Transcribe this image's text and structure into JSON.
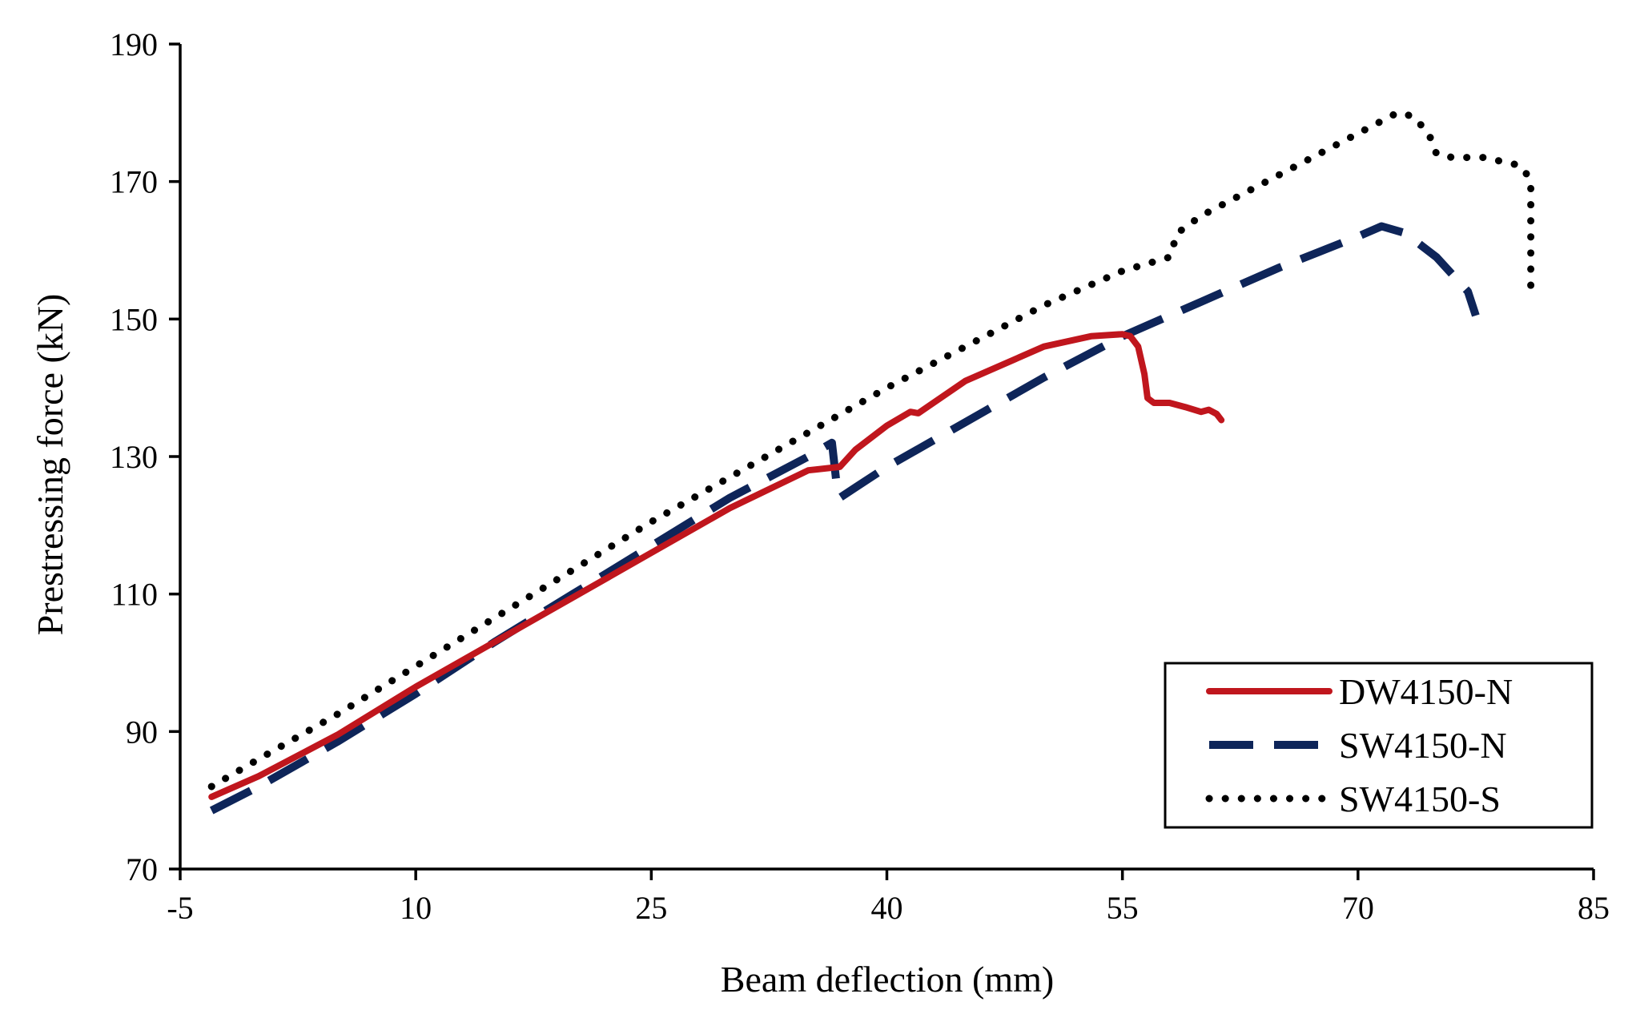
{
  "chart_data": {
    "type": "line",
    "title": "",
    "xlabel": "Beam deflection (mm)",
    "ylabel": "Prestressing force (kN)",
    "xlim": [
      -5,
      85
    ],
    "ylim": [
      70,
      190
    ],
    "x_ticks": [
      -5,
      10,
      25,
      40,
      55,
      70,
      85
    ],
    "y_ticks": [
      70,
      90,
      110,
      130,
      150,
      170,
      190
    ],
    "x_tick_labels": [
      "-5",
      "10",
      "25",
      "40",
      "55",
      "70",
      "85"
    ],
    "y_tick_labels": [
      "70",
      "90",
      "110",
      "130",
      "150",
      "170",
      "190"
    ],
    "grid": false,
    "legend_position": "bottom-right",
    "series": [
      {
        "name": "DW4150-N",
        "color": "#c0161d",
        "style": "solid",
        "x": [
          -3,
          0,
          5,
          10,
          15,
          20,
          25,
          30,
          35,
          37,
          38,
          40,
          41.5,
          42,
          45,
          50,
          53,
          55,
          55.5,
          56,
          56.4,
          56.6,
          57,
          58,
          59,
          60,
          60.5,
          61,
          61.3
        ],
        "y": [
          80.5,
          83.5,
          89.5,
          96.5,
          103,
          109.5,
          116,
          122.5,
          128,
          128.5,
          131,
          134.5,
          136.5,
          136.3,
          141,
          146,
          147.5,
          147.8,
          147.5,
          146,
          142,
          138.5,
          137.8,
          137.8,
          137.2,
          136.5,
          136.8,
          136.2,
          135.3
        ]
      },
      {
        "name": "SW4150-N",
        "color": "#0e2559",
        "style": "dashed",
        "x": [
          -3,
          0,
          5,
          10,
          15,
          20,
          25,
          30,
          35,
          36.5,
          36.8,
          37,
          38,
          40,
          45,
          50,
          55,
          60,
          65,
          70,
          71.5,
          73,
          75,
          77,
          77.5
        ],
        "y": [
          78.5,
          82,
          88.5,
          95.5,
          103,
          110,
          117,
          124,
          130,
          132,
          126,
          124,
          125.5,
          128.5,
          135,
          141.5,
          147.5,
          152.5,
          157.5,
          162,
          163.5,
          162.5,
          159,
          154,
          150.5
        ]
      },
      {
        "name": "SW4150-S",
        "color": "#000000",
        "style": "dotted",
        "x": [
          -3,
          0,
          5,
          10,
          15,
          20,
          25,
          30,
          35,
          40,
          45,
          50,
          55,
          58,
          58.5,
          60,
          65,
          70,
          72.5,
          73.5,
          74.5,
          75,
          76,
          77,
          78,
          79,
          80,
          80.5,
          81,
          81,
          81
        ],
        "y": [
          82,
          86,
          92.5,
          99.5,
          106.5,
          113.5,
          120.5,
          127,
          133.5,
          140,
          146,
          152,
          157,
          159,
          162.5,
          165,
          171,
          177,
          180,
          179.5,
          177,
          174,
          173.5,
          173.5,
          173.5,
          173,
          172.5,
          172,
          170,
          160,
          153
        ]
      }
    ]
  }
}
